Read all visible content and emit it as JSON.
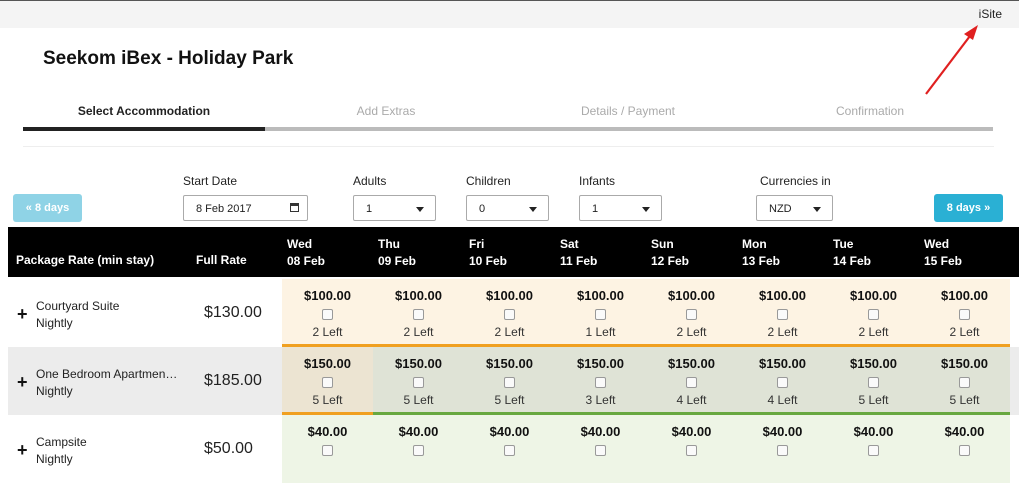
{
  "header": {
    "site_link": "iSite",
    "title": "Seekom iBex - Holiday Park"
  },
  "steps": [
    "Select Accommodation",
    "Add Extras",
    "Details / Payment",
    "Confirmation"
  ],
  "filters": {
    "start_date": {
      "label": "Start Date",
      "value": "8 Feb 2017"
    },
    "adults": {
      "label": "Adults",
      "value": "1"
    },
    "children": {
      "label": "Children",
      "value": "0"
    },
    "infants": {
      "label": "Infants",
      "value": "1"
    },
    "currency": {
      "label": "Currencies in",
      "value": "NZD"
    }
  },
  "nav": {
    "prev": "« 8 days",
    "next": "8 days »"
  },
  "table": {
    "col_package": "Package Rate (min stay)",
    "col_full_rate": "Full Rate",
    "days": [
      {
        "dow": "Wed",
        "date": "08 Feb"
      },
      {
        "dow": "Thu",
        "date": "09 Feb"
      },
      {
        "dow": "Fri",
        "date": "10 Feb"
      },
      {
        "dow": "Sat",
        "date": "11 Feb"
      },
      {
        "dow": "Sun",
        "date": "12 Feb"
      },
      {
        "dow": "Mon",
        "date": "13 Feb"
      },
      {
        "dow": "Tue",
        "date": "14 Feb"
      },
      {
        "dow": "Wed",
        "date": "15 Feb"
      }
    ],
    "rows": [
      {
        "name": "Courtyard Suite",
        "rate_type": "Nightly",
        "full_rate": "$130.00",
        "prices": [
          "$100.00",
          "$100.00",
          "$100.00",
          "$100.00",
          "$100.00",
          "$100.00",
          "$100.00",
          "$100.00"
        ],
        "availability": [
          "2 Left",
          "2 Left",
          "2 Left",
          "1 Left",
          "2 Left",
          "2 Left",
          "2 Left",
          "2 Left"
        ]
      },
      {
        "name": "One Bedroom Apartmen…",
        "rate_type": "Nightly",
        "full_rate": "$185.00",
        "prices": [
          "$150.00",
          "$150.00",
          "$150.00",
          "$150.00",
          "$150.00",
          "$150.00",
          "$150.00",
          "$150.00"
        ],
        "availability": [
          "5 Left",
          "5 Left",
          "5 Left",
          "3 Left",
          "4 Left",
          "4 Left",
          "5 Left",
          "5 Left"
        ]
      },
      {
        "name": "Campsite",
        "rate_type": "Nightly",
        "full_rate": "$50.00",
        "prices": [
          "$40.00",
          "$40.00",
          "$40.00",
          "$40.00",
          "$40.00",
          "$40.00",
          "$40.00",
          "$40.00"
        ],
        "availability": [
          "",
          "",
          "",
          "",
          "",
          "",
          "",
          ""
        ]
      }
    ]
  },
  "colors": {
    "accent": "#2ab0d4",
    "annotation_arrow": "#e02020",
    "row1_bg": "#fdf3e3",
    "row2_bg": "#dfe3d6",
    "row3_bg": "#eef5e6"
  }
}
